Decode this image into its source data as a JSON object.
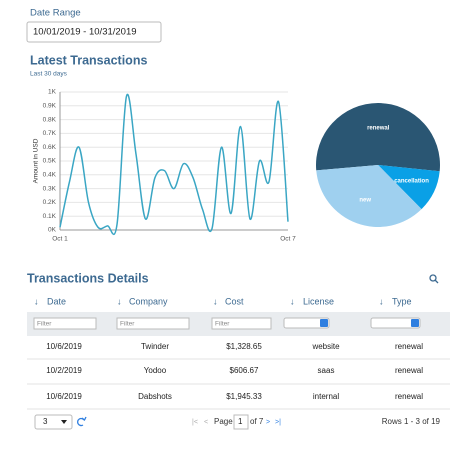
{
  "date_range": {
    "label": "Date Range",
    "value": "10/01/2019 - 10/31/2019"
  },
  "chart_data": [
    {
      "type": "line",
      "title": "Latest Transactions",
      "subtitle": "Last 30 days",
      "y_label": "Amount in USD",
      "color": "#3aa6c4",
      "grid": true,
      "categories": [
        "Oct 1",
        null,
        null,
        null,
        null,
        null,
        null,
        null,
        null,
        null,
        null,
        null,
        null,
        null,
        null,
        null,
        null,
        null,
        null,
        null,
        null,
        null,
        null,
        null,
        "Oct 7"
      ],
      "values": [
        20,
        350,
        600,
        200,
        20,
        30,
        40,
        970,
        550,
        80,
        380,
        430,
        300,
        480,
        380,
        150,
        10,
        600,
        120,
        750,
        80,
        500,
        350,
        930,
        60
      ],
      "ylim": [
        0,
        1000
      ],
      "yticks": [
        {
          "value": 0,
          "label": "0K"
        },
        {
          "value": 100,
          "label": "0.1K"
        },
        {
          "value": 200,
          "label": "0.2K"
        },
        {
          "value": 300,
          "label": "0.3K"
        },
        {
          "value": 400,
          "label": "0.4K"
        },
        {
          "value": 500,
          "label": "0.5K"
        },
        {
          "value": 600,
          "label": "0.6K"
        },
        {
          "value": 700,
          "label": "0.7K"
        },
        {
          "value": 800,
          "label": "0.8K"
        },
        {
          "value": 900,
          "label": "0.9K"
        },
        {
          "value": 1000,
          "label": "1K"
        }
      ]
    },
    {
      "type": "pie",
      "categories": [
        "renewal",
        "cancellation",
        "new"
      ],
      "values": [
        53,
        11,
        36
      ],
      "colors": [
        "#2a5673",
        "#0aa0e6",
        "#9fd0ef"
      ]
    }
  ],
  "table": {
    "title": "Transactions Details",
    "headers": [
      "Date",
      "Company",
      "Cost",
      "License",
      "Type"
    ],
    "filter_placeholder": "Filter",
    "rows": [
      [
        "10/6/2019",
        "Twinder",
        "$1,328.65",
        "website",
        "renewal"
      ],
      [
        "10/2/2019",
        "Yodoo",
        "$606.67",
        "saas",
        "renewal"
      ],
      [
        "10/6/2019",
        "Dabshots",
        "$1,945.33",
        "internal",
        "renewal"
      ]
    ],
    "page_size": "3",
    "page_label": "Page",
    "page": "1",
    "page_of": "of 7",
    "rows_info": "Rows 1 - 3 of 19"
  }
}
